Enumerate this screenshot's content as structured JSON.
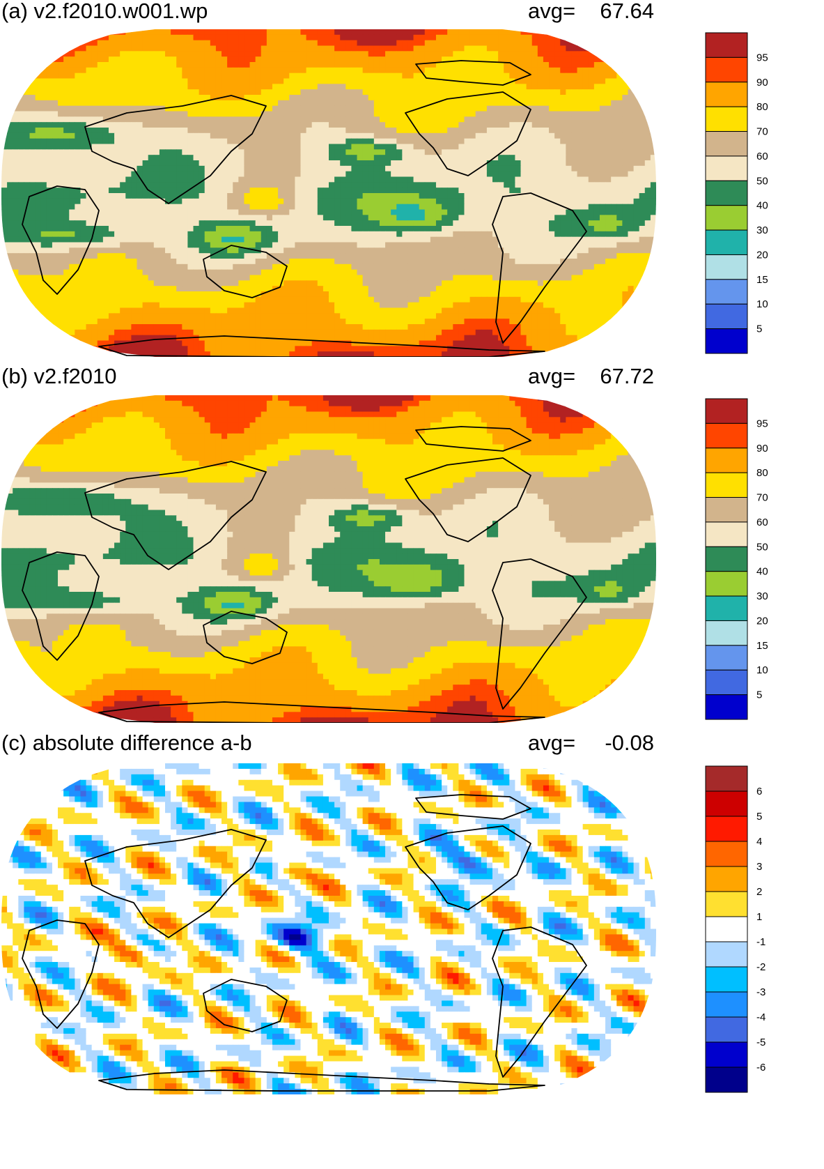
{
  "panels": [
    {
      "id": "a",
      "title": "(a) v2.f2010.w001.wp",
      "avg_label": "avg=",
      "avg_value": "67.64",
      "colorbar": {
        "labels": [
          "95",
          "90",
          "80",
          "70",
          "60",
          "50",
          "40",
          "30",
          "20",
          "15",
          "10",
          "5"
        ],
        "colors": [
          "#b22222",
          "#ff4500",
          "#ffa500",
          "#ffe000",
          "#d2b48c",
          "#f5e6c4",
          "#2e8b57",
          "#9acd32",
          "#20b2aa",
          "#b0e0e6",
          "#6495ed",
          "#4169e1",
          "#0000cd"
        ]
      }
    },
    {
      "id": "b",
      "title": "(b) v2.f2010",
      "avg_label": "avg=",
      "avg_value": "67.72",
      "colorbar": {
        "labels": [
          "95",
          "90",
          "80",
          "70",
          "60",
          "50",
          "40",
          "30",
          "20",
          "15",
          "10",
          "5"
        ],
        "colors": [
          "#b22222",
          "#ff4500",
          "#ffa500",
          "#ffe000",
          "#d2b48c",
          "#f5e6c4",
          "#2e8b57",
          "#9acd32",
          "#20b2aa",
          "#b0e0e6",
          "#6495ed",
          "#4169e1",
          "#0000cd"
        ]
      }
    },
    {
      "id": "c",
      "title": "(c) absolute difference a-b",
      "avg_label": "avg=",
      "avg_value": "-0.08",
      "colorbar": {
        "labels": [
          "6",
          "5",
          "4",
          "3",
          "2",
          "1",
          "-1",
          "-2",
          "-3",
          "-4",
          "-5",
          "-6"
        ],
        "colors": [
          "#a52a2a",
          "#cd0000",
          "#ff1a00",
          "#ff6600",
          "#ffa500",
          "#ffe030",
          "#ffffff",
          "#b0d8ff",
          "#00bfff",
          "#1e90ff",
          "#4169e1",
          "#0000cd",
          "#00008b"
        ]
      }
    }
  ]
}
